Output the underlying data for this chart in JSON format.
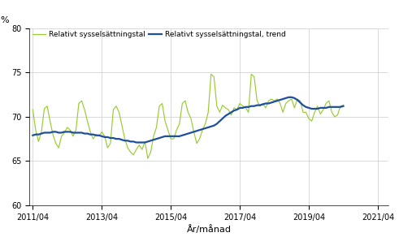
{
  "title": "",
  "ylabel": "%",
  "xlabel": "År/månad",
  "ylim": [
    60,
    80
  ],
  "yticks": [
    60,
    65,
    70,
    75,
    80
  ],
  "legend_labels": [
    "Relativt sysselsättningstal",
    "Relativt sysselsättningstal, trend"
  ],
  "line_color_actual": "#99cc33",
  "line_color_trend": "#1f4e9e",
  "bg_color": "#ffffff",
  "grid_color": "#cccccc",
  "xtick_labels": [
    "2011/04",
    "2013/04",
    "2015/04",
    "2017/04",
    "2019/04",
    "2021/04"
  ],
  "actual": [
    70.8,
    68.5,
    67.2,
    68.3,
    70.9,
    71.2,
    69.5,
    68.0,
    67.0,
    66.5,
    67.8,
    68.2,
    68.8,
    68.5,
    67.8,
    68.5,
    71.5,
    71.8,
    70.8,
    69.5,
    68.3,
    67.5,
    68.0,
    67.8,
    68.3,
    67.8,
    66.5,
    67.0,
    70.8,
    71.2,
    70.5,
    69.0,
    67.5,
    66.5,
    66.0,
    65.7,
    66.3,
    66.8,
    66.3,
    67.2,
    65.3,
    66.0,
    67.8,
    68.8,
    71.2,
    71.5,
    69.5,
    68.5,
    67.5,
    67.5,
    68.5,
    69.2,
    71.5,
    71.8,
    70.5,
    69.8,
    68.3,
    67.0,
    67.5,
    68.5,
    69.2,
    70.5,
    74.8,
    74.5,
    71.2,
    70.5,
    71.3,
    71.0,
    70.8,
    70.2,
    71.0,
    70.8,
    71.5,
    71.2,
    71.0,
    70.5,
    74.8,
    74.5,
    71.8,
    71.2,
    71.5,
    71.0,
    71.8,
    72.0,
    71.8,
    72.0,
    71.5,
    70.5,
    71.5,
    71.8,
    72.0,
    71.0,
    72.0,
    71.8,
    70.5,
    70.5,
    69.8,
    69.5,
    70.5,
    71.2,
    70.3,
    70.8,
    71.5,
    71.8,
    70.5,
    70.0,
    70.2,
    71.2,
    71.3
  ],
  "trend": [
    67.9,
    68.0,
    68.0,
    68.1,
    68.2,
    68.2,
    68.2,
    68.3,
    68.3,
    68.2,
    68.2,
    68.3,
    68.3,
    68.3,
    68.2,
    68.2,
    68.2,
    68.2,
    68.1,
    68.1,
    68.0,
    68.0,
    67.9,
    67.9,
    67.8,
    67.7,
    67.7,
    67.6,
    67.6,
    67.5,
    67.5,
    67.4,
    67.3,
    67.3,
    67.2,
    67.2,
    67.1,
    67.1,
    67.1,
    67.1,
    67.2,
    67.3,
    67.4,
    67.5,
    67.6,
    67.7,
    67.8,
    67.8,
    67.8,
    67.8,
    67.8,
    67.8,
    67.9,
    68.0,
    68.1,
    68.2,
    68.3,
    68.4,
    68.5,
    68.6,
    68.7,
    68.8,
    68.9,
    69.0,
    69.2,
    69.5,
    69.8,
    70.1,
    70.3,
    70.5,
    70.7,
    70.8,
    71.0,
    71.0,
    71.1,
    71.1,
    71.2,
    71.2,
    71.3,
    71.3,
    71.4,
    71.5,
    71.5,
    71.6,
    71.7,
    71.8,
    71.9,
    72.0,
    72.1,
    72.2,
    72.2,
    72.1,
    71.9,
    71.6,
    71.3,
    71.1,
    71.0,
    70.9,
    70.9,
    70.9,
    71.0,
    71.0,
    71.0,
    71.1,
    71.1,
    71.1,
    71.1,
    71.1,
    71.2
  ]
}
